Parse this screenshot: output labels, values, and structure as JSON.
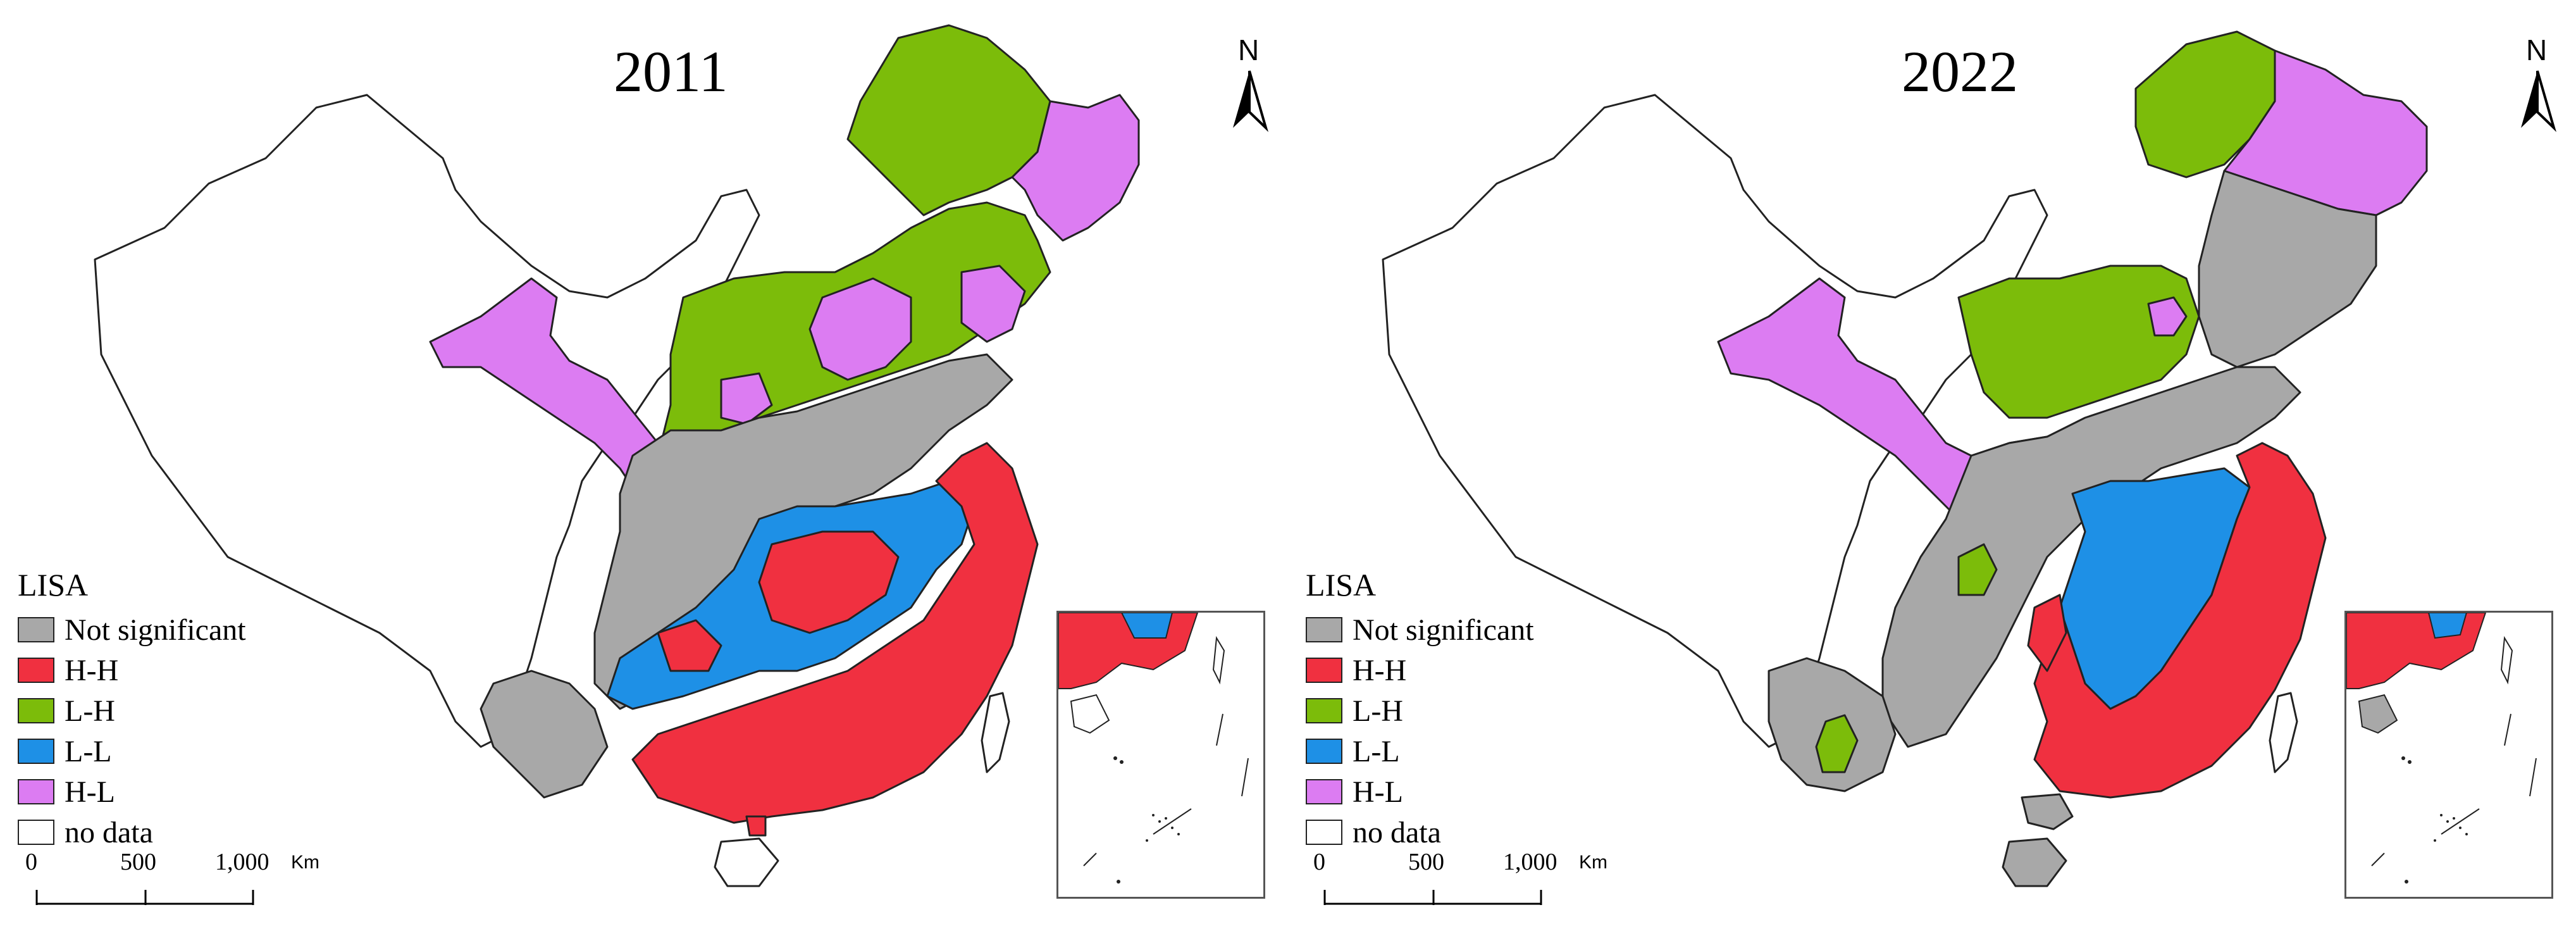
{
  "colors": {
    "not_significant": "#a8a8a8",
    "hh": "#f03040",
    "lh": "#7cbc0a",
    "ll": "#1e90e6",
    "hl": "#dc7cf2",
    "no_data": "#ffffff",
    "outline": "#222222"
  },
  "panels": [
    {
      "year": "2011",
      "legend_title": "LISA",
      "legend": [
        {
          "label": "Not significant",
          "color": "#a8a8a8"
        },
        {
          "label": "H-H",
          "color": "#f03040"
        },
        {
          "label": "L-H",
          "color": "#7cbc0a"
        },
        {
          "label": "L-L",
          "color": "#1e90e6"
        },
        {
          "label": "H-L",
          "color": "#dc7cf2"
        },
        {
          "label": "no data",
          "color": "#ffffff"
        }
      ],
      "scale": {
        "t0": "0",
        "t1": "500",
        "t2": "1,000",
        "unit": "Km"
      },
      "north": "N"
    },
    {
      "year": "2022",
      "legend_title": "LISA",
      "legend": [
        {
          "label": "Not significant",
          "color": "#a8a8a8"
        },
        {
          "label": "H-H",
          "color": "#f03040"
        },
        {
          "label": "L-H",
          "color": "#7cbc0a"
        },
        {
          "label": "L-L",
          "color": "#1e90e6"
        },
        {
          "label": "H-L",
          "color": "#dc7cf2"
        },
        {
          "label": "no data",
          "color": "#ffffff"
        }
      ],
      "scale": {
        "t0": "0",
        "t1": "500",
        "t2": "1,000",
        "unit": "Km"
      },
      "north": "N"
    }
  ]
}
